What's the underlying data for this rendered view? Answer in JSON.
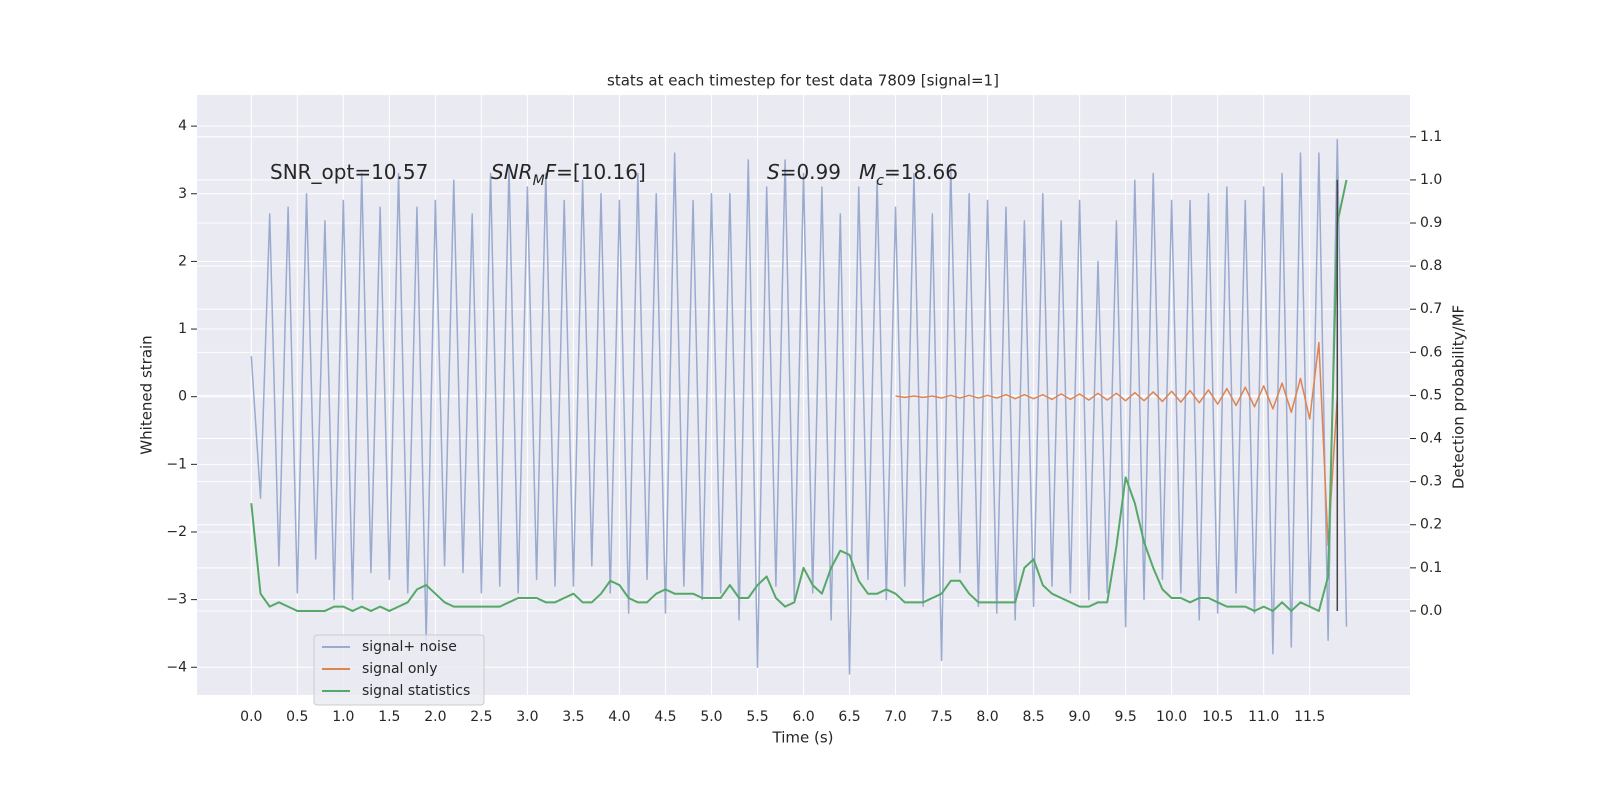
{
  "chart_data": {
    "type": "line",
    "title": "stats at each timestep for test data 7809 [signal=1]",
    "xlabel": "Time (s)",
    "ylabel": "Whitened strain",
    "y2label": "Detection probability/MF",
    "annotations": [
      [
        {
          "text": "SNR_opt=10.57",
          "style": "normal"
        }
      ],
      [
        {
          "text": "SNR",
          "style": "italic"
        },
        {
          "text": "M",
          "style": "sub"
        },
        {
          "text": "F",
          "style": "italic"
        },
        {
          "text": "=[10.16]",
          "style": "normal"
        }
      ],
      [
        {
          "text": "S",
          "style": "italic"
        },
        {
          "text": "=0.99",
          "style": "normal"
        }
      ],
      [
        {
          "text": "M",
          "style": "italic"
        },
        {
          "text": "c",
          "style": "sub"
        },
        {
          "text": "=18.66",
          "style": "normal"
        }
      ]
    ],
    "x": [
      0.0,
      0.1,
      0.2,
      0.3,
      0.4,
      0.5,
      0.6,
      0.7,
      0.8,
      0.9,
      1.0,
      1.1,
      1.2,
      1.3,
      1.4,
      1.5,
      1.6,
      1.7,
      1.8,
      1.9,
      2.0,
      2.1,
      2.2,
      2.3,
      2.4,
      2.5,
      2.6,
      2.7,
      2.8,
      2.9,
      3.0,
      3.1,
      3.2,
      3.3,
      3.4,
      3.5,
      3.6,
      3.7,
      3.8,
      3.9,
      4.0,
      4.1,
      4.2,
      4.3,
      4.4,
      4.5,
      4.6,
      4.7,
      4.8,
      4.9,
      5.0,
      5.1,
      5.2,
      5.3,
      5.4,
      5.5,
      5.6,
      5.7,
      5.8,
      5.9,
      6.0,
      6.1,
      6.2,
      6.3,
      6.4,
      6.5,
      6.6,
      6.7,
      6.8,
      6.9,
      7.0,
      7.1,
      7.2,
      7.3,
      7.4,
      7.5,
      7.6,
      7.7,
      7.8,
      7.9,
      8.0,
      8.1,
      8.2,
      8.3,
      8.4,
      8.5,
      8.6,
      8.7,
      8.8,
      8.9,
      9.0,
      9.1,
      9.2,
      9.3,
      9.4,
      9.5,
      9.6,
      9.7,
      9.8,
      9.9,
      10.0,
      10.1,
      10.2,
      10.3,
      10.4,
      10.5,
      10.6,
      10.7,
      10.8,
      10.9,
      11.0,
      11.1,
      11.2,
      11.3,
      11.4,
      11.5,
      11.6,
      11.7,
      11.8,
      11.9
    ],
    "series": [
      {
        "name": "signal+ noise",
        "color": "#9aabcf",
        "values": [
          0.6,
          -1.5,
          2.7,
          -2.5,
          2.8,
          -2.9,
          3.0,
          -2.4,
          2.6,
          -3.0,
          2.9,
          -3.0,
          3.3,
          -2.6,
          2.8,
          -2.7,
          3.3,
          -2.9,
          2.8,
          -3.6,
          2.9,
          -2.5,
          3.2,
          -2.6,
          2.7,
          -2.9,
          3.3,
          -2.8,
          3.4,
          -2.9,
          3.1,
          -2.7,
          3.3,
          -2.8,
          2.9,
          -2.8,
          3.2,
          -2.5,
          3.0,
          -2.9,
          2.9,
          -3.2,
          3.3,
          -2.7,
          3.0,
          -3.2,
          3.6,
          -2.8,
          2.9,
          -3.0,
          3.0,
          -2.9,
          3.0,
          -3.3,
          3.5,
          -4.0,
          3.1,
          -2.8,
          3.5,
          -3.0,
          3.3,
          -2.9,
          3.1,
          -3.3,
          2.7,
          -4.1,
          3.1,
          -2.7,
          3.2,
          -3.0,
          2.8,
          -2.8,
          3.3,
          -3.1,
          2.7,
          -3.9,
          3.4,
          -2.6,
          3.0,
          -3.1,
          2.9,
          -3.2,
          2.8,
          -3.3,
          2.6,
          -3.1,
          3.0,
          -2.8,
          2.6,
          -2.9,
          2.9,
          -3.0,
          2.0,
          -2.9,
          2.6,
          -3.4,
          3.2,
          -3.0,
          3.3,
          -2.7,
          2.9,
          -2.9,
          2.9,
          -3.3,
          3.0,
          -3.2,
          3.1,
          -2.9,
          2.9,
          -3.2,
          3.1,
          -3.8,
          3.3,
          -3.7,
          3.6,
          -3.1,
          3.6,
          -3.6,
          3.8,
          -3.4
        ]
      },
      {
        "name": "signal only",
        "color": "#dd8452",
        "x": [
          7.0,
          7.1,
          7.2,
          7.3,
          7.4,
          7.5,
          7.6,
          7.7,
          7.8,
          7.9,
          8.0,
          8.1,
          8.2,
          8.3,
          8.4,
          8.5,
          8.6,
          8.7,
          8.8,
          8.9,
          9.0,
          9.1,
          9.2,
          9.3,
          9.4,
          9.5,
          9.6,
          9.7,
          9.8,
          9.9,
          10.0,
          10.1,
          10.2,
          10.3,
          10.4,
          10.5,
          10.6,
          10.7,
          10.8,
          10.9,
          11.0,
          11.1,
          11.2,
          11.3,
          11.4,
          11.5,
          11.6,
          11.7,
          11.8
        ],
        "values": [
          0.01,
          -0.01,
          0.01,
          -0.01,
          0.01,
          -0.02,
          0.02,
          -0.02,
          0.02,
          -0.02,
          0.02,
          -0.02,
          0.03,
          -0.03,
          0.03,
          -0.03,
          0.03,
          -0.04,
          0.04,
          -0.04,
          0.04,
          -0.05,
          0.05,
          -0.05,
          0.05,
          -0.06,
          0.06,
          -0.06,
          0.07,
          -0.07,
          0.08,
          -0.08,
          0.09,
          -0.09,
          0.1,
          -0.11,
          0.12,
          -0.13,
          0.14,
          -0.15,
          0.16,
          -0.18,
          0.2,
          -0.23,
          0.27,
          -0.33,
          0.8,
          -2.2,
          0.0
        ]
      },
      {
        "name": "signal statistics",
        "color": "#55a868",
        "axis": "y2",
        "values": [
          0.25,
          0.04,
          0.01,
          0.02,
          0.01,
          0.0,
          0.0,
          0.0,
          0.0,
          0.01,
          0.01,
          0.0,
          0.01,
          0.0,
          0.01,
          0.0,
          0.01,
          0.02,
          0.05,
          0.06,
          0.04,
          0.02,
          0.01,
          0.01,
          0.01,
          0.01,
          0.01,
          0.01,
          0.02,
          0.03,
          0.03,
          0.03,
          0.02,
          0.02,
          0.03,
          0.04,
          0.02,
          0.02,
          0.04,
          0.07,
          0.06,
          0.03,
          0.02,
          0.02,
          0.04,
          0.05,
          0.04,
          0.04,
          0.04,
          0.03,
          0.03,
          0.03,
          0.06,
          0.03,
          0.03,
          0.06,
          0.08,
          0.03,
          0.01,
          0.02,
          0.1,
          0.06,
          0.04,
          0.1,
          0.14,
          0.13,
          0.07,
          0.04,
          0.04,
          0.05,
          0.04,
          0.02,
          0.02,
          0.02,
          0.03,
          0.04,
          0.07,
          0.07,
          0.04,
          0.02,
          0.02,
          0.02,
          0.02,
          0.02,
          0.1,
          0.12,
          0.06,
          0.04,
          0.03,
          0.02,
          0.01,
          0.01,
          0.02,
          0.02,
          0.15,
          0.31,
          0.25,
          0.16,
          0.1,
          0.05,
          0.03,
          0.03,
          0.02,
          0.03,
          0.03,
          0.02,
          0.01,
          0.01,
          0.01,
          0.0,
          0.01,
          0.0,
          0.02,
          0.0,
          0.02,
          0.01,
          0.0,
          0.08,
          0.9,
          1.0
        ]
      }
    ],
    "vlines": [
      11.8
    ],
    "vline_color": "#444444",
    "xlim": [
      -0.59,
      12.59
    ],
    "ylim": [
      -4.41,
      4.46
    ],
    "y2lim": [
      -0.195,
      1.197
    ],
    "xticks": [
      {
        "value": 0,
        "label": "0.0"
      },
      {
        "value": 0.5,
        "label": "0.5"
      },
      {
        "value": 1,
        "label": "1.0"
      },
      {
        "value": 1.5,
        "label": "1.5"
      },
      {
        "value": 2,
        "label": "2.0"
      },
      {
        "value": 2.5,
        "label": "2.5"
      },
      {
        "value": 3,
        "label": "3.0"
      },
      {
        "value": 3.5,
        "label": "3.5"
      },
      {
        "value": 4,
        "label": "4.0"
      },
      {
        "value": 4.5,
        "label": "4.5"
      },
      {
        "value": 5,
        "label": "5.0"
      },
      {
        "value": 5.5,
        "label": "5.5"
      },
      {
        "value": 6,
        "label": "6.0"
      },
      {
        "value": 6.5,
        "label": "6.5"
      },
      {
        "value": 7,
        "label": "7.0"
      },
      {
        "value": 7.5,
        "label": "7.5"
      },
      {
        "value": 8,
        "label": "8.0"
      },
      {
        "value": 8.5,
        "label": "8.5"
      },
      {
        "value": 9,
        "label": "9.0"
      },
      {
        "value": 9.5,
        "label": "9.5"
      },
      {
        "value": 10,
        "label": "10.0"
      },
      {
        "value": 10.5,
        "label": "10.5"
      },
      {
        "value": 11,
        "label": "11.0"
      },
      {
        "value": 11.5,
        "label": "11.5"
      }
    ],
    "yticks": [
      {
        "value": -4,
        "label": "−4"
      },
      {
        "value": -3,
        "label": "−3"
      },
      {
        "value": -2,
        "label": "−2"
      },
      {
        "value": -1,
        "label": "−1"
      },
      0,
      1,
      2,
      3,
      4
    ],
    "y2ticks": [
      {
        "value": 0,
        "label": "0.0"
      },
      {
        "value": 0.1,
        "label": "0.1"
      },
      {
        "value": 0.2,
        "label": "0.2"
      },
      {
        "value": 0.3,
        "label": "0.3"
      },
      {
        "value": 0.4,
        "label": "0.4"
      },
      {
        "value": 0.5,
        "label": "0.5"
      },
      {
        "value": 0.6,
        "label": "0.6"
      },
      {
        "value": 0.7,
        "label": "0.7"
      },
      {
        "value": 0.8,
        "label": "0.8"
      },
      {
        "value": 0.9,
        "label": "0.9"
      },
      {
        "value": 1,
        "label": "1.0"
      },
      {
        "value": 1.1,
        "label": "1.1"
      }
    ],
    "grid": true,
    "legend": "lower left"
  }
}
